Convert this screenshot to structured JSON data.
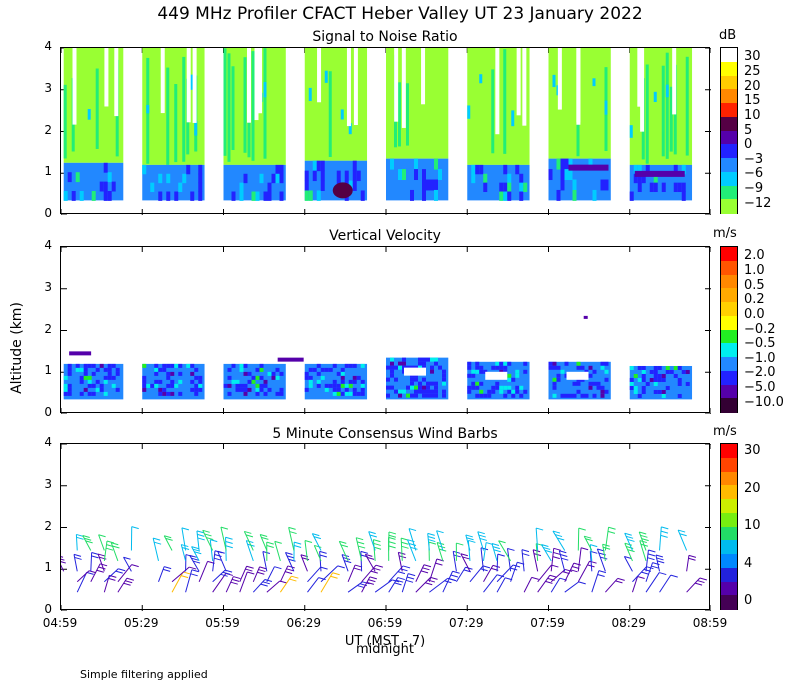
{
  "title": "449 MHz Profiler CFACT Heber Valley UT 23 January 2022",
  "ylabel": "Altitude (km)",
  "xlabel": "UT  (MST - 7)",
  "midnight_label": "midnight",
  "footnote": "Simple filtering applied",
  "x_ticks": [
    "04:59",
    "05:29",
    "05:59",
    "06:29",
    "06:59",
    "07:29",
    "07:59",
    "08:29",
    "08:59"
  ],
  "y_ticks": [
    "0",
    "1",
    "2",
    "3",
    "4"
  ],
  "chart_data": [
    {
      "type": "heatmap",
      "title": "Signal to Noise Ratio",
      "unit": "dB",
      "ylim": [
        0,
        4
      ],
      "colorbar_labels": [
        "30",
        "25",
        "20",
        "15",
        "10",
        "5",
        "0",
        "−3",
        "−6",
        "−9",
        "−12"
      ],
      "colors": [
        "#ffffff",
        "#ffff00",
        "#ffcc00",
        "#ff8800",
        "#ff2200",
        "#550044",
        "#5500aa",
        "#2222ff",
        "#2288ff",
        "#00ccff",
        "#22ee77",
        "#99ff33"
      ],
      "blocks": [
        {
          "start": "05:00",
          "end": "05:22",
          "top_km": 4.0,
          "bottom_km": 0.35,
          "low_layer_top_km": 1.25
        },
        {
          "start": "05:29",
          "end": "05:52",
          "top_km": 4.0,
          "bottom_km": 0.35,
          "low_layer_top_km": 1.2
        },
        {
          "start": "05:59",
          "end": "06:22",
          "top_km": 4.0,
          "bottom_km": 0.35,
          "low_layer_top_km": 1.2
        },
        {
          "start": "06:29",
          "end": "06:52",
          "top_km": 4.0,
          "bottom_km": 0.35,
          "low_layer_top_km": 1.3
        },
        {
          "start": "06:59",
          "end": "07:22",
          "top_km": 4.0,
          "bottom_km": 0.35,
          "low_layer_top_km": 1.35
        },
        {
          "start": "07:29",
          "end": "07:52",
          "top_km": 4.0,
          "bottom_km": 0.35,
          "low_layer_top_km": 1.2
        },
        {
          "start": "07:59",
          "end": "08:22",
          "top_km": 4.0,
          "bottom_km": 0.35,
          "low_layer_top_km": 1.35
        },
        {
          "start": "08:29",
          "end": "08:52",
          "top_km": 4.0,
          "bottom_km": 0.35,
          "low_layer_top_km": 1.2
        }
      ]
    },
    {
      "type": "heatmap",
      "title": "Vertical Velocity",
      "unit": "m/s",
      "ylim": [
        0,
        4
      ],
      "colorbar_labels": [
        "2.0",
        "1.0",
        "0.5",
        "0.2",
        "0.0",
        "−0.2",
        "−0.5",
        "−1.0",
        "−2.0",
        "−5.0",
        "−10.0"
      ],
      "colors": [
        "#ff0000",
        "#ff5500",
        "#ff8800",
        "#ffaa00",
        "#ffd000",
        "#ffff00",
        "#22ee22",
        "#00eeee",
        "#2288ff",
        "#2222ff",
        "#5500aa",
        "#330033"
      ],
      "blocks": [
        {
          "start": "05:00",
          "end": "05:22",
          "top_km": 1.2,
          "bottom_km": 0.35
        },
        {
          "start": "05:29",
          "end": "05:52",
          "top_km": 1.2,
          "bottom_km": 0.35
        },
        {
          "start": "05:59",
          "end": "06:22",
          "top_km": 1.2,
          "bottom_km": 0.35
        },
        {
          "start": "06:29",
          "end": "06:52",
          "top_km": 1.2,
          "bottom_km": 0.35
        },
        {
          "start": "06:59",
          "end": "07:22",
          "top_km": 1.35,
          "bottom_km": 0.35
        },
        {
          "start": "07:29",
          "end": "07:52",
          "top_km": 1.25,
          "bottom_km": 0.35
        },
        {
          "start": "07:59",
          "end": "08:22",
          "top_km": 1.25,
          "bottom_km": 0.35
        },
        {
          "start": "08:29",
          "end": "08:52",
          "top_km": 1.15,
          "bottom_km": 0.35
        }
      ]
    },
    {
      "type": "barbs",
      "title": "5 Minute Consensus Wind Barbs",
      "unit": "m/s",
      "ylim": [
        0,
        4
      ],
      "colorbar_labels": [
        "30",
        "20",
        "10",
        "4",
        "0"
      ],
      "colors": [
        "#ff0000",
        "#ff4400",
        "#ff8800",
        "#ffbb00",
        "#ccee00",
        "#77ee11",
        "#22dd66",
        "#00bbee",
        "#0088ff",
        "#2222dd",
        "#5500aa",
        "#440055"
      ],
      "altitude_range_km": [
        0.4,
        1.6
      ],
      "time_range": [
        "05:00",
        "08:56"
      ]
    }
  ]
}
